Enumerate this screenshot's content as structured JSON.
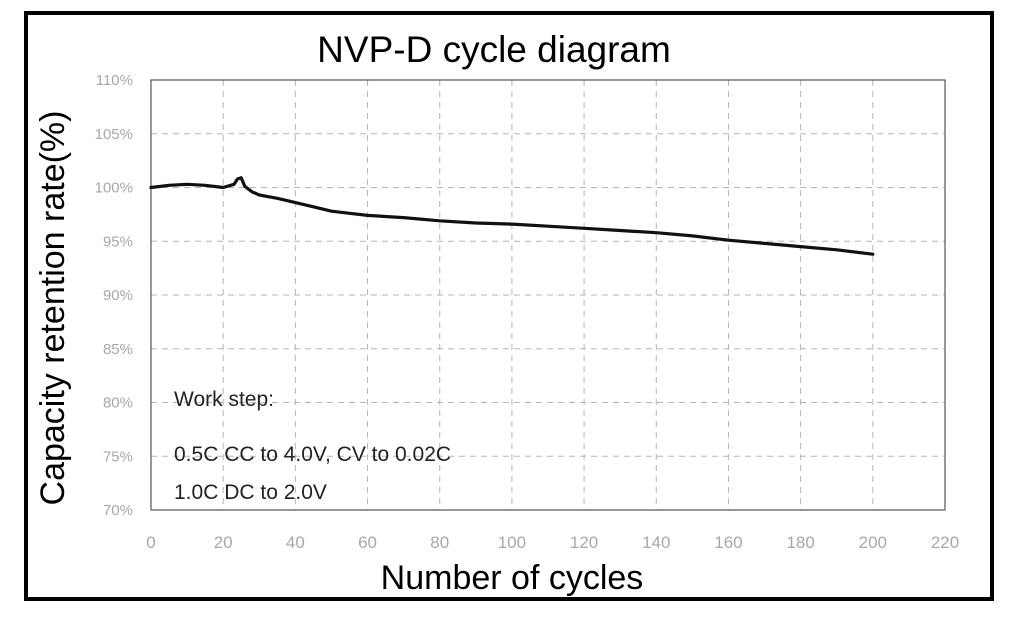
{
  "chart_data": {
    "type": "line",
    "title": "NVP-D cycle diagram",
    "xlabel": "Number of cycles",
    "ylabel": "Capacity retention rate(%)",
    "xlim": [
      0,
      220
    ],
    "ylim": [
      70,
      110
    ],
    "x_ticks": [
      "0",
      "20",
      "40",
      "60",
      "80",
      "100",
      "120",
      "140",
      "160",
      "180",
      "200",
      "220"
    ],
    "y_ticks": [
      "70%",
      "75%",
      "80%",
      "85%",
      "90%",
      "95%",
      "100%",
      "105%",
      "110%"
    ],
    "grid": true,
    "series": [
      {
        "x": [
          0,
          5,
          10,
          15,
          20,
          23,
          24,
          25,
          26,
          28,
          30,
          35,
          40,
          45,
          50,
          55,
          60,
          70,
          80,
          90,
          100,
          110,
          120,
          130,
          140,
          150,
          160,
          170,
          180,
          190,
          200
        ],
        "y": [
          100.0,
          100.2,
          100.3,
          100.2,
          100.0,
          100.3,
          100.8,
          100.9,
          100.1,
          99.6,
          99.3,
          99.0,
          98.6,
          98.2,
          97.8,
          97.6,
          97.4,
          97.2,
          96.9,
          96.7,
          96.6,
          96.4,
          96.2,
          96.0,
          95.8,
          95.5,
          95.1,
          94.8,
          94.5,
          94.2,
          93.8
        ]
      }
    ],
    "annotations": [
      "Work step:",
      "0.5C CC to 4.0V, CV to 0.02C",
      "1.0C DC to 2.0V"
    ],
    "line_color": "#111111"
  }
}
